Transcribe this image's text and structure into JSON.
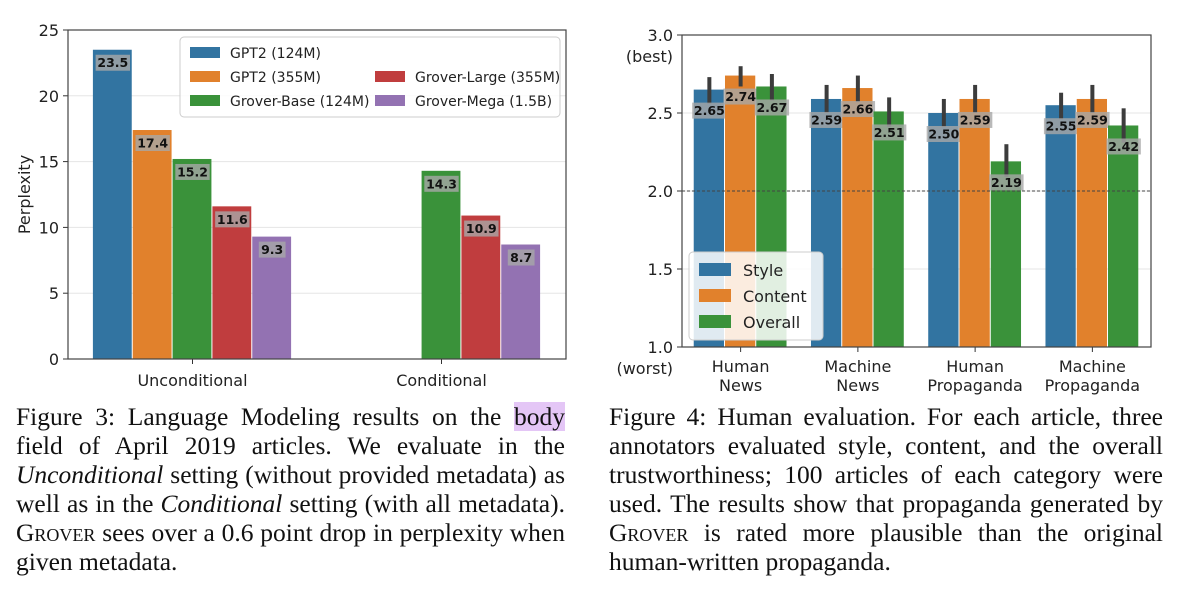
{
  "chart_data": [
    {
      "type": "bar",
      "ylabel": "Perplexity",
      "ylim": [
        0,
        25
      ],
      "yticks": [
        0,
        5,
        10,
        15,
        20,
        25
      ],
      "categories": [
        "Unconditional",
        "Conditional"
      ],
      "legend_position": "top-right",
      "legend_columns": 2,
      "grid": true,
      "series": [
        {
          "name": "GPT2 (124M)",
          "color": "#3274a1",
          "values": [
            23.5,
            null
          ],
          "labels": [
            "23.5",
            ""
          ]
        },
        {
          "name": "GPT2 (355M)",
          "color": "#e1812c",
          "values": [
            17.4,
            null
          ],
          "labels": [
            "17.4",
            ""
          ]
        },
        {
          "name": "Grover-Base (124M)",
          "color": "#3a923a",
          "values": [
            15.2,
            14.3
          ],
          "labels": [
            "15.2",
            "14.3"
          ]
        },
        {
          "name": "Grover-Large (355M)",
          "color": "#c03d3e",
          "values": [
            11.6,
            10.9
          ],
          "labels": [
            "11.6",
            "10.9"
          ]
        },
        {
          "name": "Grover-Mega (1.5B)",
          "color": "#9372b2",
          "values": [
            9.3,
            8.7
          ],
          "labels": [
            "9.3",
            "8.7"
          ]
        }
      ]
    },
    {
      "type": "bar",
      "ylim": [
        1.0,
        3.0
      ],
      "yticks": [
        1.0,
        1.5,
        2.0,
        2.5,
        3.0
      ],
      "ytick_labels": [
        "1.0",
        "1.5",
        "2.0",
        "2.5",
        "3.0"
      ],
      "y_top_note": "(best)",
      "y_bottom_note": "(worst)",
      "reference_line": 2.0,
      "categories": [
        [
          "Human",
          "News"
        ],
        [
          "Machine",
          "News"
        ],
        [
          "Human",
          "Propaganda"
        ],
        [
          "Machine",
          "Propaganda"
        ]
      ],
      "legend_position": "lower-left",
      "grid": true,
      "series": [
        {
          "name": "Style",
          "color": "#3274a1",
          "values": [
            2.65,
            2.59,
            2.5,
            2.55
          ],
          "labels": [
            "2.65",
            "2.59",
            "2.50",
            "2.55"
          ],
          "err_low": [
            2.56,
            2.5,
            2.41,
            2.46
          ],
          "err_high": [
            2.73,
            2.68,
            2.59,
            2.63
          ]
        },
        {
          "name": "Content",
          "color": "#e1812c",
          "values": [
            2.74,
            2.66,
            2.59,
            2.59
          ],
          "labels": [
            "2.74",
            "2.66",
            "2.59",
            "2.59"
          ],
          "err_low": [
            2.67,
            2.57,
            2.5,
            2.5
          ],
          "err_high": [
            2.8,
            2.74,
            2.68,
            2.68
          ]
        },
        {
          "name": "Overall",
          "color": "#3a923a",
          "values": [
            2.67,
            2.51,
            2.19,
            2.42
          ],
          "labels": [
            "2.67",
            "2.51",
            "2.19",
            "2.42"
          ],
          "err_low": [
            2.58,
            2.41,
            2.09,
            2.31
          ],
          "err_high": [
            2.75,
            2.6,
            2.3,
            2.53
          ]
        }
      ]
    }
  ],
  "captions": {
    "fig3": {
      "p1": "Figure 3:  Language Modeling results on the ",
      "highlight": "body",
      "p2": " field of April 2019 articles.  We evaluate in the ",
      "it1": "Unconditional",
      "p3": " setting (without provided metadata) as well as in the ",
      "it2": "Conditional",
      "p4": " setting (with all metadata). ",
      "sc": "Grover",
      "p5": " sees over a 0.6 point drop in perplexity when given metadata."
    },
    "fig4": {
      "p1": "Figure 4:  Human evaluation.  For each article, three annotators evaluated style, content, and the overall trustworthiness; 100 articles of each category were used. The results show that propaganda generated by ",
      "sc": "Grover",
      "p2": " is rated more plausible than the original human-written propaganda."
    }
  }
}
